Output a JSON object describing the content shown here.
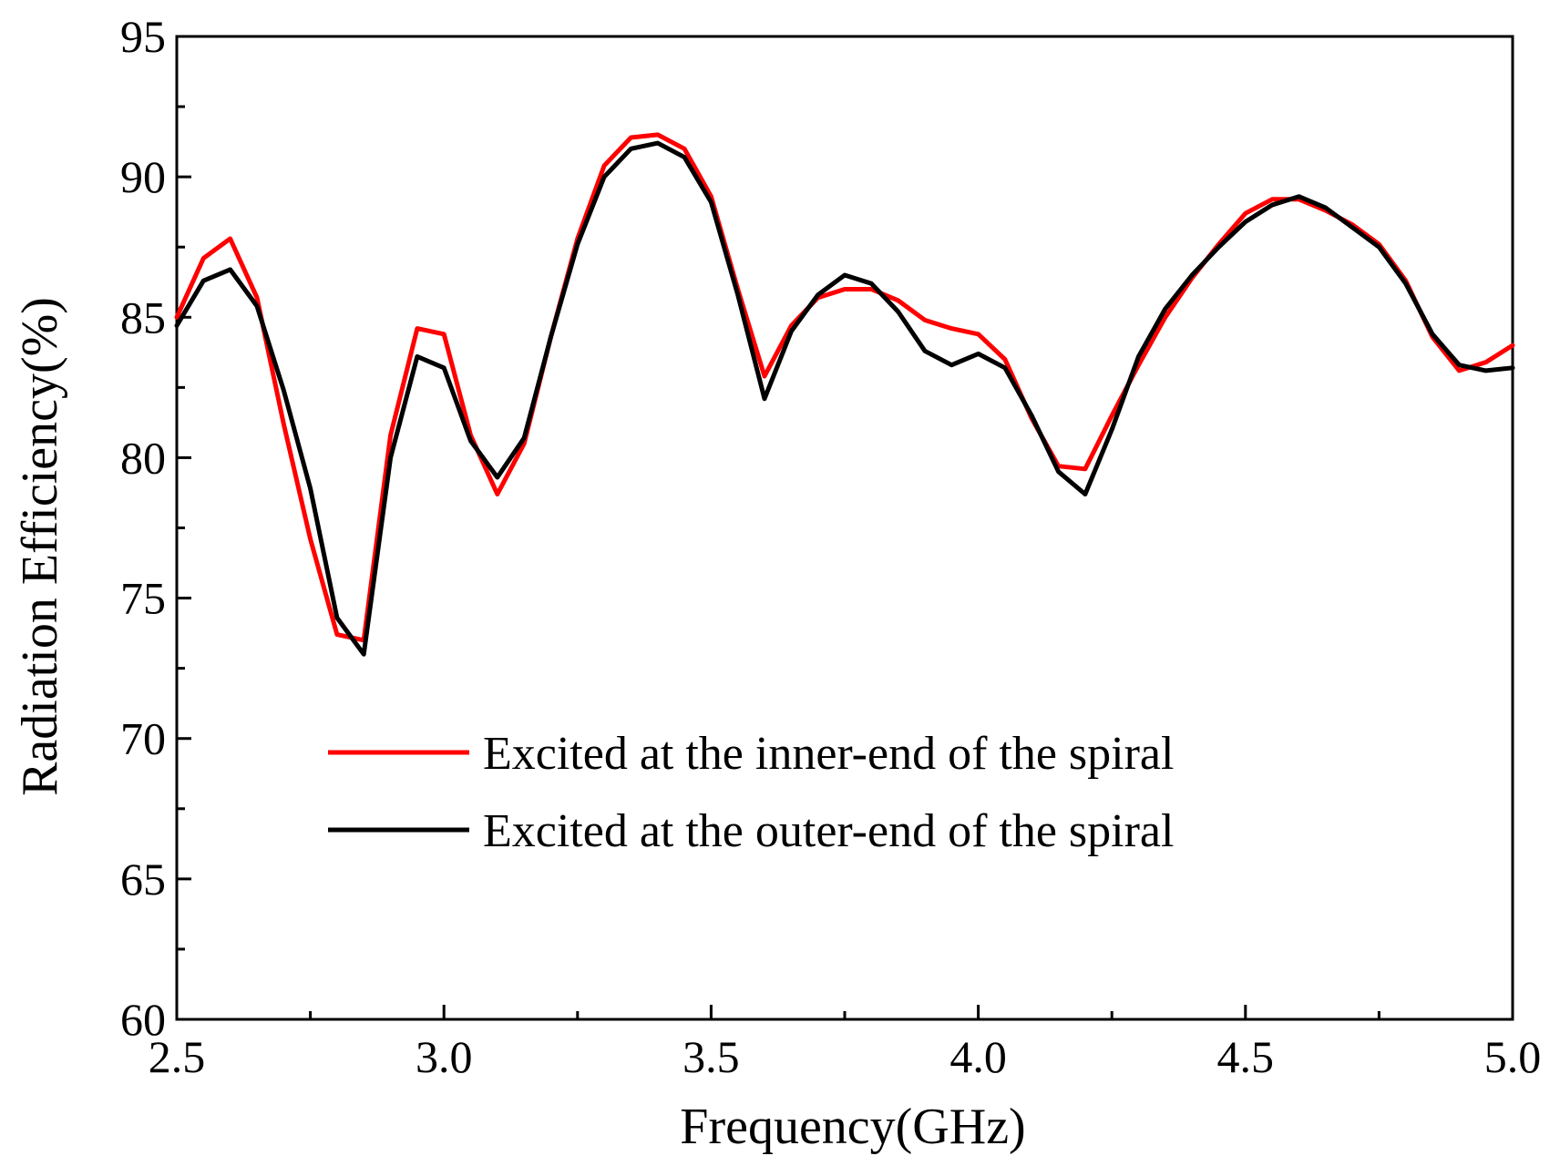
{
  "chart_data": {
    "type": "line",
    "title": "",
    "xlabel": "Frequency(GHz)",
    "ylabel": "Radiation Efficiency(%)",
    "xlim": [
      2.5,
      5.0
    ],
    "ylim": [
      60,
      95
    ],
    "xticks": [
      "2.5",
      "3.0",
      "3.5",
      "4.0",
      "4.5",
      "5.0"
    ],
    "yticks": [
      "60",
      "65",
      "70",
      "75",
      "80",
      "85",
      "90",
      "95"
    ],
    "grid": false,
    "legend_position": "lower-center",
    "x": [
      2.5,
      2.55,
      2.6,
      2.65,
      2.7,
      2.75,
      2.8,
      2.85,
      2.9,
      2.95,
      3.0,
      3.05,
      3.1,
      3.15,
      3.2,
      3.25,
      3.3,
      3.35,
      3.4,
      3.45,
      3.5,
      3.55,
      3.6,
      3.65,
      3.7,
      3.75,
      3.8,
      3.85,
      3.9,
      3.95,
      4.0,
      4.05,
      4.1,
      4.15,
      4.2,
      4.25,
      4.3,
      4.35,
      4.4,
      4.45,
      4.5,
      4.55,
      4.6,
      4.65,
      4.7,
      4.75,
      4.8,
      4.85,
      4.9,
      4.95,
      5.0
    ],
    "series": [
      {
        "name": "Excited at the inner-end of the spiral",
        "color": "#ff0000",
        "values": [
          85.0,
          87.1,
          87.8,
          85.7,
          81.2,
          77.1,
          73.7,
          73.5,
          80.8,
          84.6,
          84.4,
          80.8,
          78.7,
          80.5,
          84.3,
          87.8,
          90.4,
          91.4,
          91.5,
          91.0,
          89.3,
          86.0,
          82.9,
          84.7,
          85.7,
          86.0,
          86.0,
          85.6,
          84.9,
          84.6,
          84.4,
          83.5,
          81.4,
          79.7,
          79.6,
          81.5,
          83.3,
          85.0,
          86.4,
          87.6,
          88.7,
          89.2,
          89.2,
          88.8,
          88.3,
          87.6,
          86.3,
          84.3,
          83.1,
          83.4,
          84.0
        ]
      },
      {
        "name": "Excited at the outer-end of the spiral",
        "color": "#000000",
        "values": [
          84.7,
          86.3,
          86.7,
          85.4,
          82.4,
          78.9,
          74.3,
          73.0,
          80.0,
          83.6,
          83.2,
          80.6,
          79.3,
          80.7,
          84.3,
          87.6,
          90.0,
          91.0,
          91.2,
          90.7,
          89.1,
          85.8,
          82.1,
          84.5,
          85.8,
          86.5,
          86.2,
          85.2,
          83.8,
          83.3,
          83.7,
          83.2,
          81.5,
          79.5,
          78.7,
          81.0,
          83.6,
          85.3,
          86.5,
          87.5,
          88.4,
          89.0,
          89.3,
          88.9,
          88.2,
          87.5,
          86.2,
          84.4,
          83.3,
          83.1,
          83.2
        ]
      }
    ]
  }
}
